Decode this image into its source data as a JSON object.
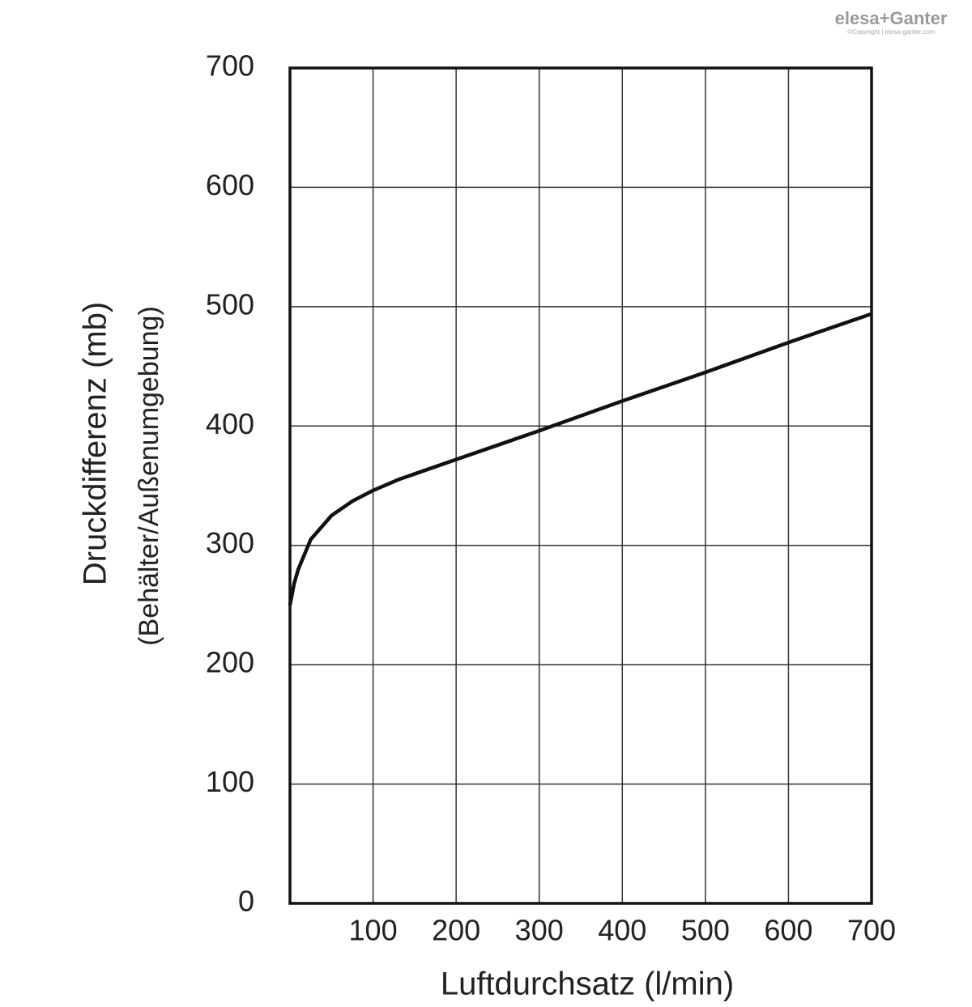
{
  "chart_data": {
    "type": "line",
    "logo": "elesa+Ganter",
    "copyright": "©Copyright | elesa-ganter.com",
    "xlabel": "Luftdurchsatz (l/min)",
    "ylabel": [
      "Druckdifferenz (mb)",
      "(Behälter/Außenumgebung)"
    ],
    "x": [
      0,
      5,
      10,
      25,
      50,
      75,
      100,
      130,
      200,
      300,
      400,
      500,
      600,
      700
    ],
    "series": [
      {
        "color": "#111111",
        "values": [
          250,
          268,
          280,
          305,
          325,
          337,
          346,
          355,
          372,
          396,
          421,
          445,
          470,
          494
        ]
      }
    ],
    "xlim": [
      0,
      700
    ],
    "xticks": [
      100,
      200,
      300,
      400,
      500,
      600,
      700
    ],
    "ylim": [
      0,
      700
    ],
    "yticks": [
      0,
      100,
      200,
      300,
      400,
      500,
      600,
      700
    ],
    "grid": true
  }
}
